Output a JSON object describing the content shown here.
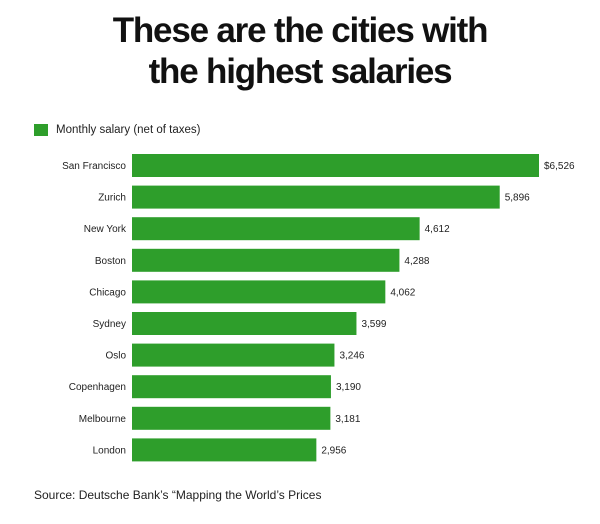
{
  "title_lines": [
    "These are the cities with",
    "the highest salaries"
  ],
  "legend": {
    "label": "Monthly salary (net of taxes)",
    "color": "#2e9e2b"
  },
  "source": "Source: Deutsche Bank’s “Mapping the World’s Prices",
  "chart_data": {
    "type": "bar",
    "orientation": "horizontal",
    "title": "These are the cities with the highest salaries",
    "categories": [
      "San Francisco",
      "Zurich",
      "New York",
      "Boston",
      "Chicago",
      "Sydney",
      "Oslo",
      "Copenhagen",
      "Melbourne",
      "London"
    ],
    "series": [
      {
        "name": "Monthly salary (net of taxes)",
        "values": [
          6526,
          5896,
          4612,
          4288,
          4062,
          3599,
          3246,
          3190,
          3181,
          2956
        ],
        "labels": [
          "$6,526",
          "5,896",
          "4,612",
          "4,288",
          "4,062",
          "3,599",
          "3,246",
          "3,190",
          "3,181",
          "2,956"
        ]
      }
    ],
    "bar_color": "#2e9e2b",
    "xlim": [
      0,
      6526
    ],
    "grid": false,
    "legend_position": "top-left"
  }
}
